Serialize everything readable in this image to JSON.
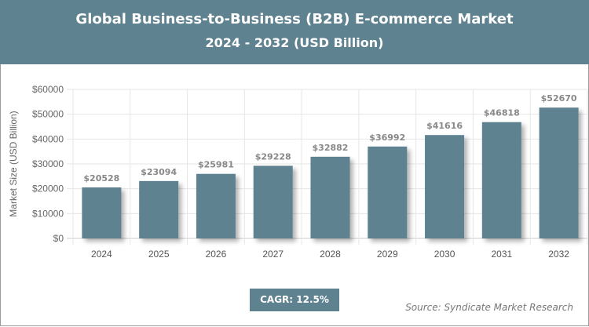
{
  "header": {
    "title": "Global Business-to-Business (B2B) E-commerce Market",
    "subtitle": "2024 - 2032 (USD Billion)"
  },
  "chart_data": {
    "type": "bar",
    "title": "Global Business-to-Business (B2B) E-commerce Market",
    "subtitle": "2024 - 2032 (USD Billion)",
    "categories": [
      "2024",
      "2025",
      "2026",
      "2027",
      "2028",
      "2029",
      "2030",
      "2031",
      "2032"
    ],
    "values": [
      20528,
      23094,
      25981,
      29228,
      32882,
      36992,
      41616,
      46818,
      52670
    ],
    "data_labels": [
      "$20528",
      "$23094",
      "$25981",
      "$29228",
      "$32882",
      "$36992",
      "$41616",
      "$46818",
      "$52670"
    ],
    "xlabel": "",
    "ylabel": "Market Size (USD Billion)",
    "ylim": [
      0,
      60000
    ],
    "yticks": [
      "$0",
      "$10000",
      "$20000",
      "$30000",
      "$40000",
      "$50000",
      "$60000"
    ],
    "grid": true,
    "bar_color": "#5f8290"
  },
  "footer": {
    "cagr": "CAGR: 12.5%",
    "source": "Source: Syndicate Market Research"
  }
}
